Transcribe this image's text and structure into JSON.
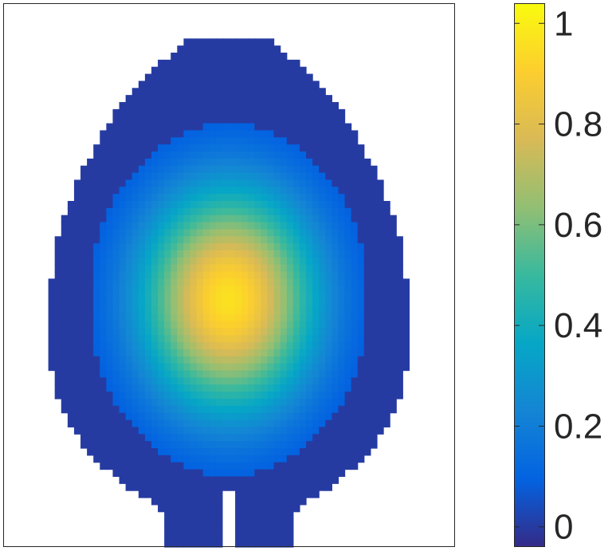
{
  "chart_data": {
    "type": "heatmap",
    "title": "",
    "xlabel": "",
    "ylabel": "",
    "axes_ticks_visible": false,
    "grid": false,
    "colormap": "parula",
    "colormap_stops": [
      "#352a87",
      "#0363e1",
      "#1485d4",
      "#06a7c6",
      "#38b99e",
      "#92bf73",
      "#d9ba56",
      "#fcce2e",
      "#f9fb0e"
    ],
    "background_color": "#ffffff",
    "grid_size": {
      "columns": 70,
      "rows": 77
    },
    "region": {
      "description": "Head-shaped mask (top-down view), flat at top, widest in middle, two lobes at bottom with a notch",
      "value_outside_core": 0
    },
    "peak": {
      "value": 0.96,
      "column": 35,
      "row": 42
    },
    "core": {
      "column_half_width": 21.5,
      "row_half_height": 25,
      "edge_value": 0.02
    },
    "colorbar": {
      "location": "right",
      "limits": [
        -0.04,
        1.04
      ],
      "ticks": [
        {
          "value": 0,
          "label": "0"
        },
        {
          "value": 0.2,
          "label": "0.2"
        },
        {
          "value": 0.4,
          "label": "0.4"
        },
        {
          "value": 0.6,
          "label": "0.6"
        },
        {
          "value": 0.8,
          "label": "0.8"
        },
        {
          "value": 1,
          "label": "1"
        }
      ]
    }
  }
}
